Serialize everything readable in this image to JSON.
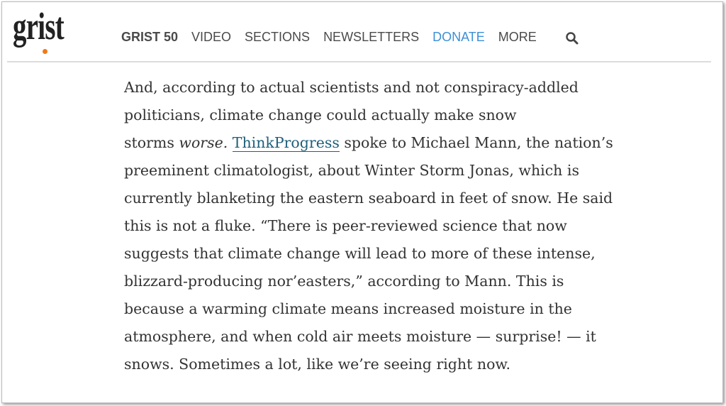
{
  "header": {
    "logo": "grist",
    "nav": [
      "GRIST 50",
      "VIDEO",
      "SECTIONS",
      "NEWSLETTERS",
      "DONATE",
      "MORE"
    ]
  },
  "article": {
    "lines": [
      "And, according to actual scientists and not conspiracy-addled",
      "politicians, climate change could actually make snow",
      {
        "before": "storms",
        "emphasis": "worse.",
        "link": "ThinkProgress",
        "after": "spoke to Michael Mann, the nation’s"
      },
      "preeminent climatologist, about Winter Storm Jonas, which is",
      "currently blanketing the eastern seaboard in feet of snow. He said",
      "this is not a fluke. “There is peer-reviewed science that now",
      "suggests that climate change will lead to more of these intense,",
      "blizzard-producing nor’easters,” according to Mann. This is",
      "because a warming climate means increased moisture in the",
      "atmosphere, and when cold air meets moisture — surprise! — it",
      "snows. Sometimes a lot, like we’re seeing right now."
    ]
  }
}
